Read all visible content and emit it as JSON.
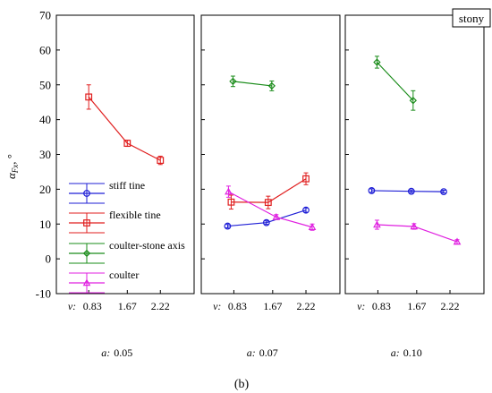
{
  "figure": {
    "label": "(b)",
    "tag": "stony",
    "ylabel": "α",
    "ylabel_sub": "Fx",
    "ylabel_suffix": ", °",
    "x_prefix": "v:",
    "a_prefix": "a:"
  },
  "chart_data": {
    "type": "line",
    "ylim": [
      -10,
      70
    ],
    "yticks": [
      -10,
      0,
      10,
      20,
      30,
      40,
      50,
      60,
      70
    ],
    "grid": false,
    "legend_position": "bottom-left of first panel",
    "colors": {
      "stiff tine": "#1f1fd6",
      "flexible tine": "#e01f1f",
      "coulter-stone axis": "#1a8c1a",
      "coulter": "#e020e0"
    },
    "legend": [
      {
        "name": "stiff tine",
        "marker": "circle"
      },
      {
        "name": "flexible tine",
        "marker": "square"
      },
      {
        "name": "coulter-stone axis",
        "marker": "diamond"
      },
      {
        "name": "coulter",
        "marker": "triangle"
      }
    ],
    "panels": [
      {
        "a": "0.05",
        "categories": [
          "0.83",
          "1.67",
          "2.22"
        ],
        "series": [
          {
            "name": "flexible tine",
            "values": [
              46.5,
              33.2,
              28.3
            ],
            "err": [
              3.5,
              0.9,
              1.2
            ]
          }
        ]
      },
      {
        "a": "0.07",
        "categories": [
          "0.83",
          "1.67",
          "2.22"
        ],
        "series": [
          {
            "name": "stiff tine",
            "values": [
              9.4,
              10.4,
              14.0
            ],
            "err": [
              0.5,
              0.5,
              0.6
            ]
          },
          {
            "name": "flexible tine",
            "values": [
              16.3,
              16.2,
              23.0
            ],
            "err": [
              2.0,
              1.8,
              1.7
            ]
          },
          {
            "name": "coulter-stone axis",
            "values": [
              51.0,
              49.7
            ],
            "err": [
              1.5,
              1.4
            ]
          },
          {
            "name": "coulter",
            "values": [
              19.3,
              12.0,
              9.1
            ],
            "err": [
              1.6,
              0.7,
              0.9
            ]
          }
        ]
      },
      {
        "a": "0.10",
        "categories": [
          "0.83",
          "1.67",
          "2.22"
        ],
        "series": [
          {
            "name": "stiff tine",
            "values": [
              19.6,
              19.4,
              19.3
            ],
            "err": [
              0.5,
              0.4,
              0.4
            ]
          },
          {
            "name": "coulter-stone axis",
            "values": [
              56.5,
              45.5
            ],
            "err": [
              1.7,
              2.8
            ]
          },
          {
            "name": "coulter",
            "values": [
              9.8,
              9.3,
              4.9
            ],
            "err": [
              1.3,
              0.8,
              0.6
            ]
          }
        ]
      }
    ]
  }
}
